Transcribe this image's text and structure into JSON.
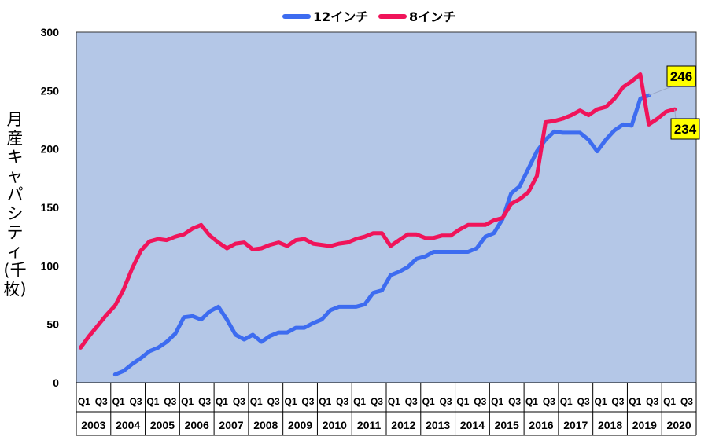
{
  "chart_data": {
    "type": "line",
    "ylabel": "月産キャパシティ(千枚)",
    "ylim": [
      0,
      300
    ],
    "yticks": [
      0,
      50,
      100,
      150,
      200,
      250,
      300
    ],
    "x_start_year": 2003,
    "years": [
      "2003",
      "2004",
      "2005",
      "2006",
      "2007",
      "2008",
      "2009",
      "2010",
      "2011",
      "2012",
      "2013",
      "2014",
      "2015",
      "2016",
      "2017",
      "2018",
      "2019",
      "2020"
    ],
    "quarter_labels": [
      "Q1",
      "Q3"
    ],
    "legend_placement": "top-center",
    "grid": false,
    "colors": {
      "plot_bg": "#b4c7e7",
      "series_12": "#3d6cf0",
      "series_8": "#f0145a",
      "callout_bg": "#ffff00"
    },
    "series": [
      {
        "name": "12インチ",
        "start_index": 4,
        "values": [
          7,
          10,
          16,
          21,
          27,
          30,
          35,
          42,
          56,
          57,
          54,
          61,
          65,
          54,
          41,
          37,
          41,
          35,
          40,
          43,
          43,
          47,
          47,
          51,
          54,
          62,
          65,
          65,
          65,
          67,
          77,
          79,
          92,
          95,
          99,
          106,
          108,
          112,
          112,
          112,
          112,
          112,
          115,
          125,
          128,
          140,
          162,
          168,
          183,
          198,
          208,
          215,
          214,
          214,
          214,
          208,
          198,
          208,
          216,
          221,
          220,
          243,
          246
        ]
      },
      {
        "name": "8インチ",
        "start_index": 0,
        "values": [
          30,
          40,
          49,
          58,
          66,
          80,
          98,
          113,
          121,
          123,
          122,
          125,
          127,
          132,
          135,
          126,
          120,
          115,
          119,
          120,
          114,
          115,
          118,
          120,
          117,
          122,
          123,
          119,
          118,
          117,
          119,
          120,
          123,
          125,
          128,
          128,
          117,
          122,
          127,
          127,
          124,
          124,
          126,
          126,
          131,
          135,
          135,
          135,
          139,
          141,
          153,
          157,
          163,
          177,
          223,
          224,
          226,
          229,
          233,
          229,
          234,
          236,
          243,
          253,
          258,
          264,
          221,
          226,
          232,
          234
        ]
      }
    ],
    "callouts": [
      "246",
      "234"
    ]
  }
}
